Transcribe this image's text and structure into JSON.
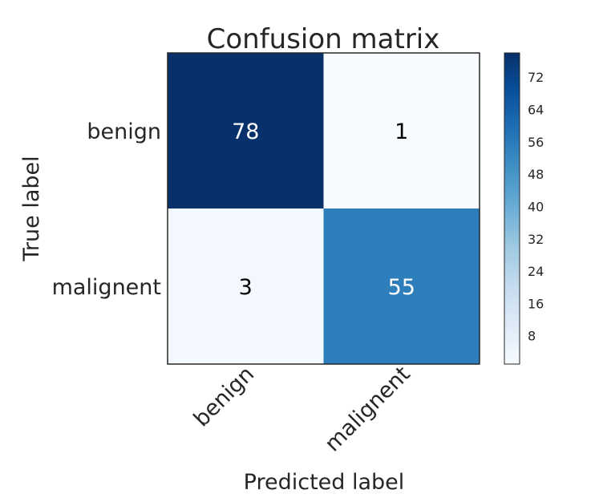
{
  "chart_data": {
    "type": "heatmap",
    "title": "Confusion matrix",
    "xlabel": "Predicted label",
    "ylabel": "True label",
    "x_categories": [
      "benign",
      "malignent"
    ],
    "y_categories": [
      "benign",
      "malignent"
    ],
    "values": [
      [
        78,
        1
      ],
      [
        3,
        55
      ]
    ],
    "colormap": "Blues",
    "value_range": [
      1,
      78
    ],
    "colorbar_ticks": [
      8,
      16,
      24,
      32,
      40,
      48,
      56,
      64,
      72
    ],
    "grid": false
  }
}
